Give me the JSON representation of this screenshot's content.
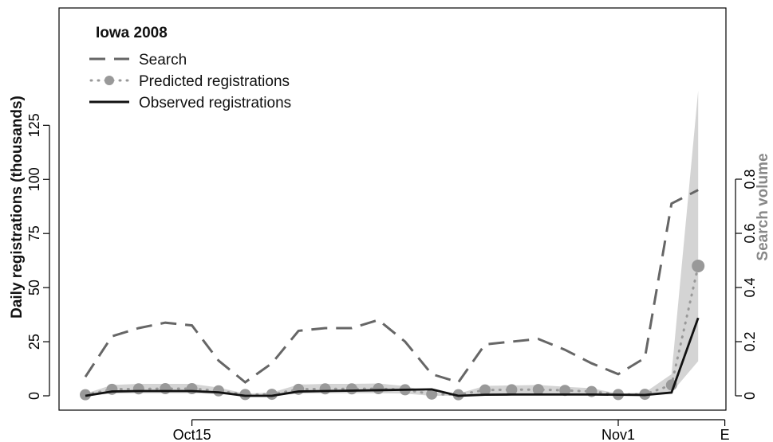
{
  "chart_data": {
    "type": "line",
    "title": "Iowa 2008",
    "ylabel": "Daily registrations (thousands)",
    "y2label": "Search volume",
    "ylim": [
      0,
      140
    ],
    "y2lim": [
      0,
      1.0
    ],
    "yticks": [
      "0",
      "25",
      "50",
      "75",
      "100",
      "125"
    ],
    "y2ticks": [
      "0",
      "0.2",
      "0.4",
      "0.6",
      "0.8"
    ],
    "xticks": [
      {
        "day": 4,
        "label": "Oct15"
      },
      {
        "day": 20,
        "label": "Nov1"
      },
      {
        "day": 24,
        "label": "E"
      }
    ],
    "legend_position": "top-left",
    "grid": false,
    "x": [
      0,
      1,
      2,
      3,
      4,
      5,
      6,
      7,
      8,
      9,
      10,
      11,
      12,
      13,
      14,
      15,
      16,
      17,
      18,
      19,
      20,
      21,
      22,
      23,
      24
    ],
    "series": [
      {
        "name": "Search",
        "axis": "right",
        "style": "dashed",
        "color": "#666666",
        "values": [
          0.07,
          0.22,
          0.25,
          0.27,
          0.26,
          0.13,
          0.05,
          0.12,
          0.24,
          0.25,
          0.25,
          0.28,
          0.2,
          0.08,
          0.05,
          0.19,
          0.2,
          0.21,
          0.17,
          0.12,
          0.08,
          0.14,
          0.71,
          0.76,
          null
        ]
      },
      {
        "name": "Predicted registrations",
        "axis": "left",
        "style": "dotted-with-points",
        "color": "#999999",
        "values": [
          0.5,
          3,
          3.2,
          3.3,
          3.3,
          2.3,
          0.6,
          0.7,
          3,
          3.2,
          3.2,
          3.3,
          2.8,
          0.8,
          0.5,
          2.7,
          2.8,
          2.9,
          2.5,
          2,
          0.6,
          0.7,
          5,
          60,
          null
        ]
      },
      {
        "name": "Observed registrations",
        "axis": "left",
        "style": "solid",
        "color": "#111111",
        "values": [
          0,
          2,
          2.2,
          2.2,
          2.2,
          1.6,
          0,
          0,
          2,
          2.2,
          2.4,
          2.6,
          2.8,
          3,
          0,
          0.5,
          0.6,
          0.6,
          0.6,
          0.6,
          0.5,
          0.4,
          1.5,
          36,
          null
        ]
      }
    ],
    "band": {
      "color": "#d4d4d4",
      "x": [
        0,
        1,
        2,
        3,
        4,
        5,
        6,
        7,
        8,
        9,
        10,
        11,
        12,
        13,
        14,
        15,
        16,
        17,
        18,
        19,
        20,
        21,
        22,
        23
      ],
      "lower": [
        0,
        1,
        1.2,
        1.2,
        1.2,
        0.8,
        0,
        0,
        1,
        1.2,
        1.2,
        1.2,
        1,
        0,
        0,
        0.8,
        0.8,
        0.8,
        0.6,
        0.6,
        0,
        0,
        1.5,
        16
      ],
      "upper": [
        1,
        5,
        5.5,
        5.5,
        5.5,
        3.8,
        1,
        1.5,
        5.2,
        5.5,
        5.5,
        5.7,
        4.5,
        1.5,
        1,
        4.6,
        4.8,
        5,
        4.2,
        3.5,
        1,
        1.5,
        10,
        141
      ]
    }
  }
}
